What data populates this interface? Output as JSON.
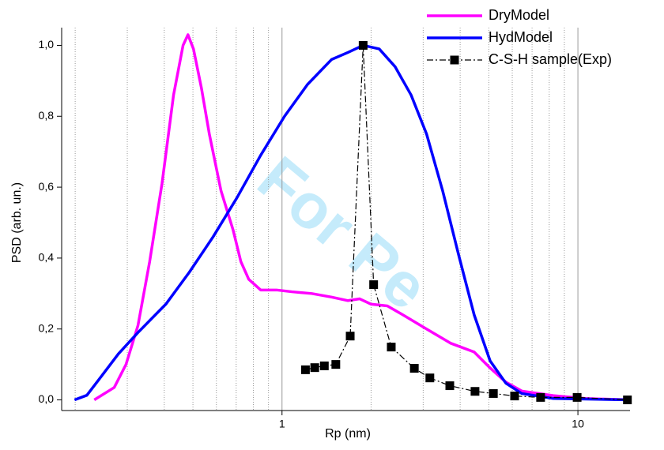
{
  "chart_data": {
    "type": "line",
    "x_label": "Rp (nm)",
    "y_label": "PSD (arb. un.)",
    "watermark": "For Pe",
    "xscale": "log",
    "xlim": [
      0.18,
      15
    ],
    "xticks": [
      1,
      10
    ],
    "xgrid_minor": [
      0.2,
      0.3,
      0.4,
      0.5,
      0.6,
      0.7,
      0.8,
      0.9,
      2,
      3,
      4,
      5,
      6,
      7,
      8,
      9
    ],
    "ylim": [
      -0.03,
      1.05
    ],
    "yticks": [
      {
        "value": 0,
        "label": "0,0"
      },
      {
        "value": 0.2,
        "label": "0,2"
      },
      {
        "value": 0.4,
        "label": "0,4"
      },
      {
        "value": 0.6,
        "label": "0,6"
      },
      {
        "value": 0.8,
        "label": "0,8"
      },
      {
        "value": 1.0,
        "label": "1,0"
      }
    ],
    "grid": true,
    "legend": "top-right",
    "series": [
      {
        "name": "DryModel",
        "color": "#ff00ff",
        "x": [
          0.232,
          0.271,
          0.297,
          0.326,
          0.357,
          0.393,
          0.43,
          0.463,
          0.481,
          0.502,
          0.534,
          0.568,
          0.622,
          0.683,
          0.726,
          0.772,
          0.847,
          0.958,
          1.08,
          1.26,
          1.47,
          1.67,
          1.83,
          2.0,
          2.27,
          2.56,
          3.08,
          3.71,
          4.46,
          5.05,
          5.71,
          6.46,
          8.26,
          10.6,
          15
        ],
        "values": [
          0,
          0.035,
          0.1,
          0.21,
          0.39,
          0.61,
          0.86,
          1.0,
          1.03,
          0.99,
          0.88,
          0.75,
          0.59,
          0.48,
          0.39,
          0.34,
          0.31,
          0.31,
          0.305,
          0.3,
          0.29,
          0.28,
          0.285,
          0.27,
          0.265,
          0.24,
          0.2,
          0.16,
          0.135,
          0.09,
          0.05,
          0.025,
          0.012,
          0.004,
          0
        ]
      },
      {
        "name": "HydModel",
        "color": "#0000ff",
        "x": [
          0.199,
          0.219,
          0.247,
          0.28,
          0.326,
          0.405,
          0.486,
          0.585,
          0.704,
          0.847,
          1.02,
          1.22,
          1.47,
          1.67,
          1.88,
          2.13,
          2.41,
          2.73,
          3.08,
          3.49,
          3.95,
          4.46,
          5.05,
          5.71,
          6.46,
          8.26,
          15
        ],
        "values": [
          0,
          0.013,
          0.07,
          0.13,
          0.19,
          0.27,
          0.36,
          0.46,
          0.57,
          0.69,
          0.8,
          0.89,
          0.96,
          0.98,
          1.0,
          0.99,
          0.94,
          0.86,
          0.75,
          0.59,
          0.41,
          0.24,
          0.11,
          0.047,
          0.018,
          0.004,
          0
        ]
      },
      {
        "name": "C-S-H sample(Exp)",
        "color": "#000000",
        "marker": "square",
        "x": [
          1.2,
          1.29,
          1.39,
          1.52,
          1.7,
          1.88,
          2.04,
          2.34,
          2.8,
          3.16,
          3.69,
          4.49,
          5.18,
          6.11,
          7.48,
          9.94,
          14.7
        ],
        "values": [
          0.085,
          0.091,
          0.096,
          0.1,
          0.18,
          1.0,
          0.325,
          0.149,
          0.089,
          0.062,
          0.04,
          0.024,
          0.018,
          0.011,
          0.007,
          0.007,
          0
        ]
      }
    ]
  }
}
